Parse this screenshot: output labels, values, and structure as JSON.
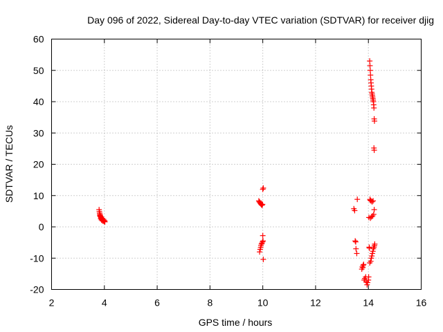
{
  "chart_data": {
    "type": "scatter",
    "title": "Day 096 of 2022, Sidereal Day-to-day VTEC variation (SDTVAR) for receiver djig",
    "xlabel": "GPS time / hours",
    "ylabel": "SDTVAR / TECUs",
    "xlim": [
      2,
      16
    ],
    "ylim": [
      -20,
      60
    ],
    "xticks": [
      2,
      4,
      6,
      8,
      10,
      12,
      14,
      16
    ],
    "yticks": [
      -20,
      -10,
      0,
      10,
      20,
      30,
      40,
      50,
      60
    ],
    "grid": true,
    "marker": "+",
    "color": "#ff0000",
    "series": [
      {
        "name": "SDTVAR",
        "points": [
          [
            3.8,
            5.5
          ],
          [
            3.81,
            4.9
          ],
          [
            3.82,
            4.4
          ],
          [
            3.83,
            4.0
          ],
          [
            3.84,
            3.7
          ],
          [
            3.85,
            3.4
          ],
          [
            3.86,
            3.2
          ],
          [
            3.87,
            3.0
          ],
          [
            3.88,
            2.8
          ],
          [
            3.89,
            2.7
          ],
          [
            3.9,
            2.5
          ],
          [
            3.91,
            2.4
          ],
          [
            3.92,
            2.3
          ],
          [
            3.93,
            2.2
          ],
          [
            3.95,
            2.1
          ],
          [
            3.96,
            2.0
          ],
          [
            3.98,
            1.8
          ],
          [
            4.0,
            1.7
          ],
          [
            4.02,
            1.6
          ],
          [
            3.83,
            3.5
          ],
          [
            3.86,
            2.6
          ],
          [
            3.89,
            2.2
          ],
          [
            3.93,
            1.9
          ],
          [
            3.97,
            2.4
          ],
          [
            4.01,
            2.0
          ],
          [
            9.85,
            8.3
          ],
          [
            9.87,
            8.0
          ],
          [
            9.89,
            7.8
          ],
          [
            9.91,
            7.5
          ],
          [
            9.93,
            7.3
          ],
          [
            9.95,
            7.1
          ],
          [
            9.97,
            6.9
          ],
          [
            9.99,
            7.2
          ],
          [
            10.0,
            12.0
          ],
          [
            10.02,
            12.4
          ],
          [
            9.88,
            -8.0
          ],
          [
            9.9,
            -7.2
          ],
          [
            9.92,
            -6.6
          ],
          [
            9.93,
            -6.0
          ],
          [
            9.95,
            -5.5
          ],
          [
            9.97,
            -5.2
          ],
          [
            9.99,
            -4.8
          ],
          [
            10.01,
            -4.5
          ],
          [
            10.0,
            -2.8
          ],
          [
            10.02,
            -10.4
          ],
          [
            13.45,
            5.8
          ],
          [
            13.48,
            5.2
          ],
          [
            13.5,
            -4.5
          ],
          [
            13.52,
            -4.8
          ],
          [
            13.53,
            -7.0
          ],
          [
            13.56,
            -8.5
          ],
          [
            13.58,
            8.8
          ],
          [
            13.75,
            -13.5
          ],
          [
            13.77,
            -12.8
          ],
          [
            13.79,
            -13.0
          ],
          [
            13.8,
            -12.3
          ],
          [
            13.82,
            -12.0
          ],
          [
            13.84,
            -17.0
          ],
          [
            13.86,
            -16.5
          ],
          [
            13.9,
            -16.0
          ],
          [
            13.92,
            -17.5
          ],
          [
            13.95,
            -18.5
          ],
          [
            13.97,
            -17.8
          ],
          [
            14.0,
            -17.0
          ],
          [
            14.01,
            -16.0
          ],
          [
            14.02,
            3.0
          ],
          [
            14.03,
            -6.5
          ],
          [
            14.04,
            -6.8
          ],
          [
            14.05,
            -11.5
          ],
          [
            14.06,
            8.8
          ],
          [
            14.07,
            8.5
          ],
          [
            14.08,
            2.8
          ],
          [
            14.09,
            -11.0
          ],
          [
            14.1,
            8.3
          ],
          [
            14.11,
            -10.0
          ],
          [
            14.12,
            3.2
          ],
          [
            14.13,
            -9.3
          ],
          [
            14.14,
            8.0
          ],
          [
            14.15,
            -8.5
          ],
          [
            14.16,
            3.5
          ],
          [
            14.17,
            -7.8
          ],
          [
            14.18,
            8.3
          ],
          [
            14.19,
            -7.0
          ],
          [
            14.2,
            4.0
          ],
          [
            14.21,
            -6.5
          ],
          [
            14.22,
            5.5
          ],
          [
            14.23,
            -6.0
          ],
          [
            14.24,
            -5.5
          ],
          [
            14.05,
            53.0
          ],
          [
            14.06,
            51.5
          ],
          [
            14.07,
            50.0
          ],
          [
            14.08,
            48.5
          ],
          [
            14.09,
            47.0
          ],
          [
            14.1,
            46.0
          ],
          [
            14.11,
            45.0
          ],
          [
            14.12,
            44.0
          ],
          [
            14.13,
            43.0
          ],
          [
            14.14,
            42.5
          ],
          [
            14.15,
            42.0
          ],
          [
            14.16,
            41.5
          ],
          [
            14.17,
            41.0
          ],
          [
            14.18,
            40.5
          ],
          [
            14.19,
            40.0
          ],
          [
            14.2,
            39.0
          ],
          [
            14.21,
            38.0
          ],
          [
            14.22,
            34.5
          ],
          [
            14.23,
            33.8
          ],
          [
            14.21,
            25.2
          ],
          [
            14.22,
            24.5
          ]
        ]
      }
    ]
  }
}
